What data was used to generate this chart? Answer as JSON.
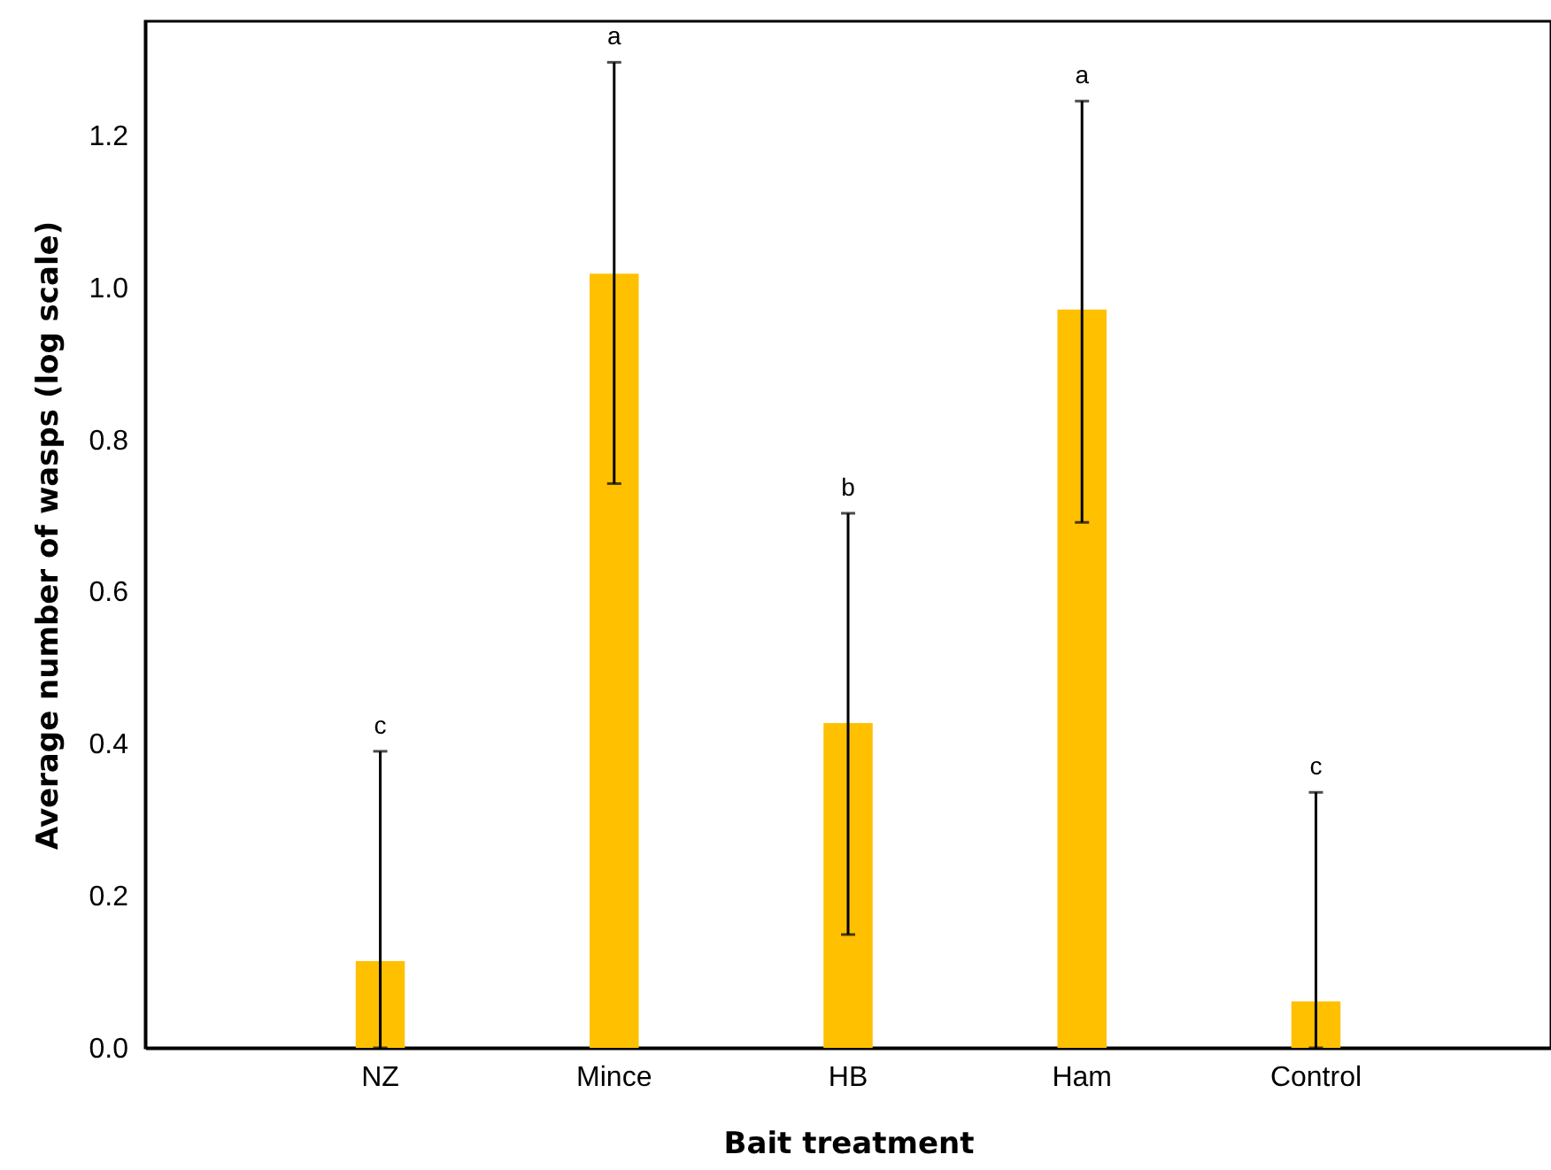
{
  "chart_data": {
    "type": "bar",
    "xlabel": "Bait treatment",
    "ylabel": "Average number of wasps (log scale)",
    "categories": [
      "NZ",
      "Mince",
      "HB",
      "Ham",
      "Control"
    ],
    "values": [
      0.114,
      1.018,
      0.427,
      0.971,
      0.061
    ],
    "errors": [
      [
        0.0,
        0.39
      ],
      [
        0.742,
        1.296
      ],
      [
        0.149,
        0.703
      ],
      [
        0.691,
        1.245
      ],
      [
        0.0,
        0.336
      ]
    ],
    "color": "#ffc000",
    "ylim": [
      0,
      1.35
    ],
    "yticks": [
      {
        "value": 0,
        "label": "0.0"
      },
      0.2,
      0.4,
      0.6,
      0.8,
      {
        "value": 1,
        "label": "1.0"
      },
      1.2
    ],
    "grid": false,
    "annotations": [
      {
        "text": "c",
        "x": "NZ",
        "y": 0.39
      },
      {
        "text": "a",
        "x": "Mince",
        "y": 1.296
      },
      {
        "text": "b",
        "x": "HB",
        "y": 0.703
      },
      {
        "text": "a",
        "x": "Ham",
        "y": 1.245
      },
      {
        "text": "c",
        "x": "Control",
        "y": 0.336
      }
    ]
  }
}
